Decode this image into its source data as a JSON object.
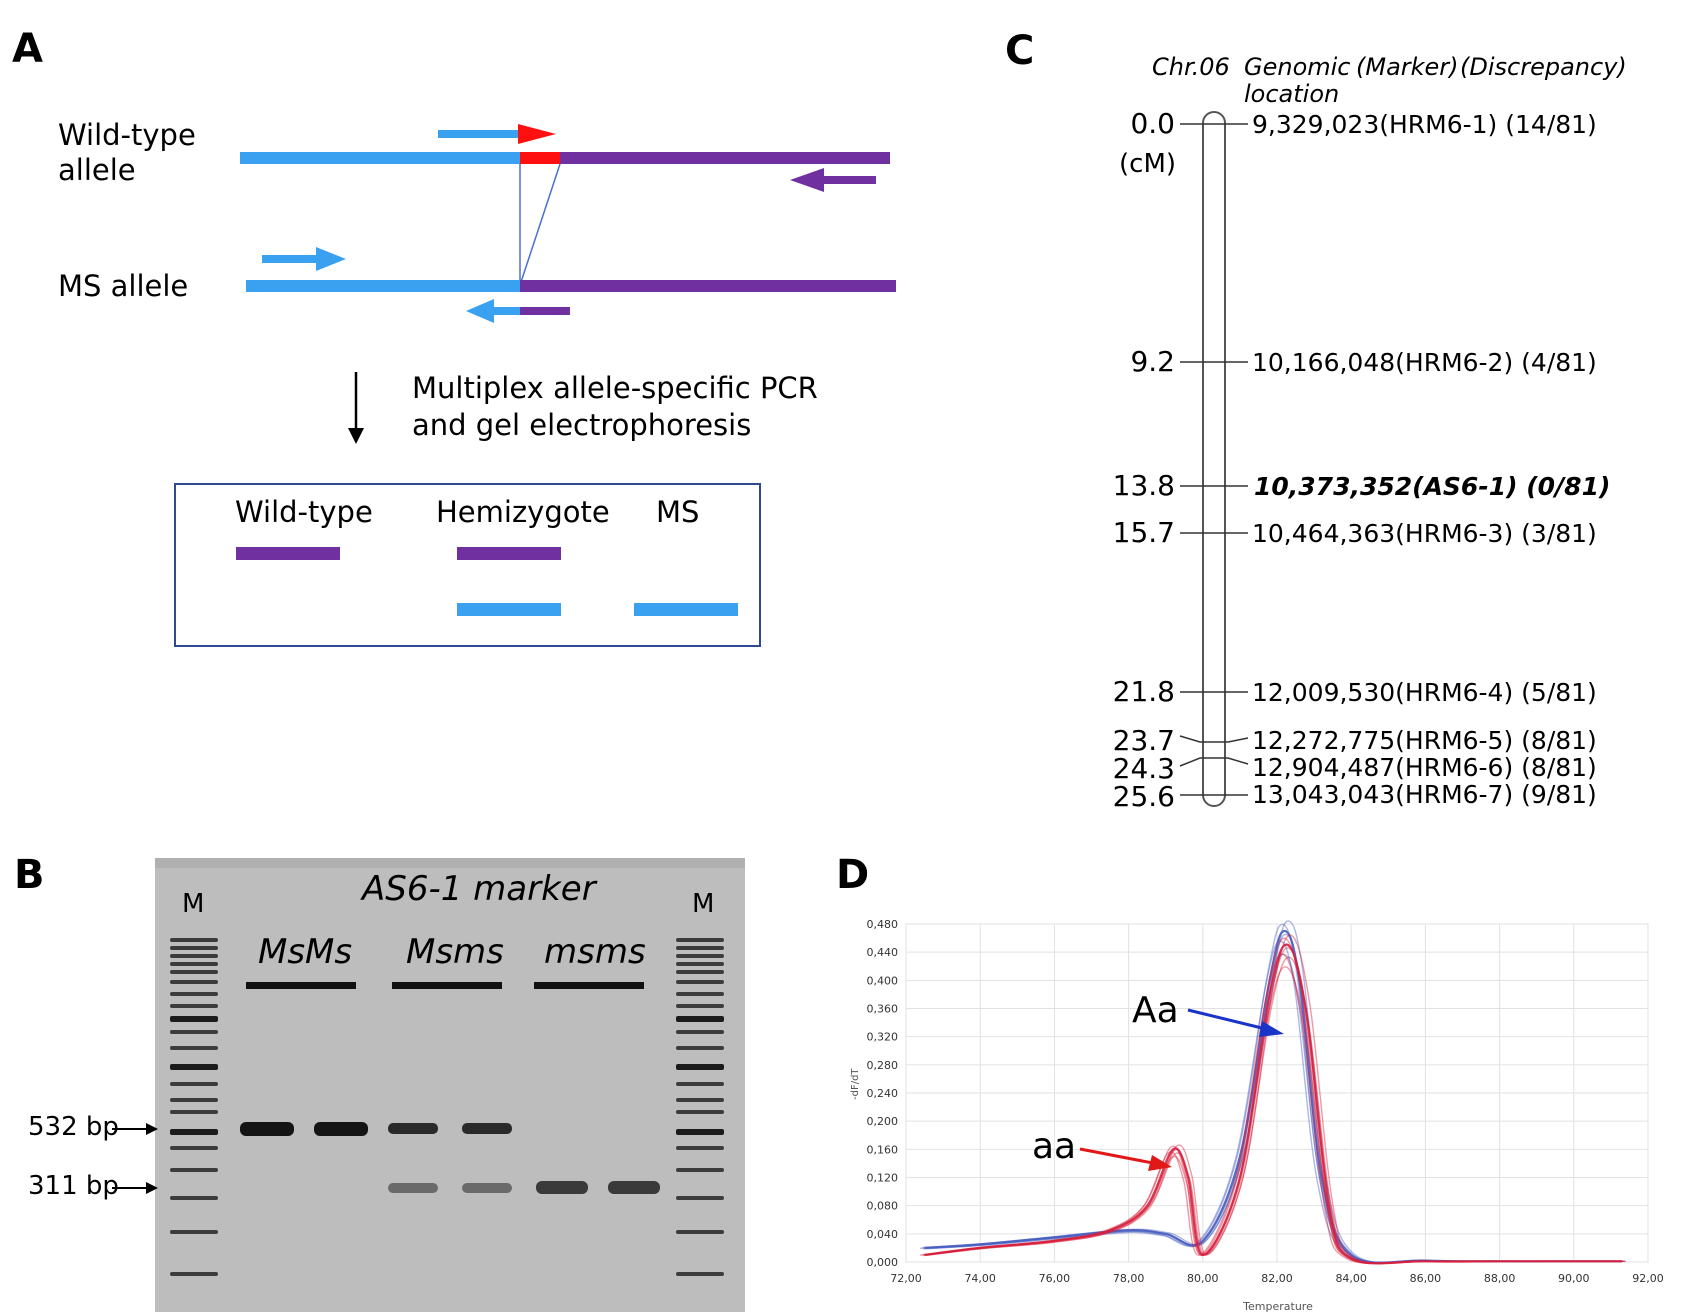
{
  "colors": {
    "blue": "#3aa0f0",
    "purple": "#7030a0",
    "red": "#ff1010",
    "navy": "#2f4a8f",
    "gel_bg": "#bdbdbd",
    "band": "#1a1a1a",
    "curve_blue": "#4a5fc0",
    "curve_red": "#d8203c"
  },
  "panel_a": {
    "label": "A",
    "wild_type_line1": "Wild-type",
    "wild_type_line2": "allele",
    "ms_allele": "MS allele",
    "process_line1": "Multiplex allele-specific PCR",
    "process_line2": "and gel electrophoresis",
    "lanes": [
      "Wild-type",
      "Hemizygote",
      "MS"
    ]
  },
  "panel_b": {
    "label": "B",
    "title": "AS6-1 marker",
    "marker_left": "M",
    "marker_right": "M",
    "groups": [
      "MsMs",
      "Msms",
      "msms"
    ],
    "size_labels": [
      "532 bp",
      "311 bp"
    ]
  },
  "panel_c": {
    "label": "C",
    "header_chr": "Chr.06",
    "header_genomic_line1": "Genomic",
    "header_genomic_line2": "location",
    "header_marker": "(Marker)",
    "header_discrepancy": "(Discrepancy)",
    "unit": "(cM)",
    "loci": [
      {
        "cm": "0.0",
        "text": "9,329,023(HRM6-1) (14/81)",
        "bold_italic": false
      },
      {
        "cm": "9.2",
        "text": "10,166,048(HRM6-2) (4/81)",
        "bold_italic": false
      },
      {
        "cm": "13.8",
        "text": "10,373,352(AS6-1) (0/81)",
        "bold_italic": true
      },
      {
        "cm": "15.7",
        "text": "10,464,363(HRM6-3) (3/81)",
        "bold_italic": false
      },
      {
        "cm": "21.8",
        "text": "12,009,530(HRM6-4) (5/81)",
        "bold_italic": false
      },
      {
        "cm": "23.7",
        "text": "12,272,775(HRM6-5) (8/81)",
        "bold_italic": false
      },
      {
        "cm": "24.3",
        "text": "12,904,487(HRM6-6) (8/81)",
        "bold_italic": false
      },
      {
        "cm": "25.6",
        "text": "13,043,043(HRM6-7) (9/81)",
        "bold_italic": false
      }
    ]
  },
  "panel_d": {
    "label": "D",
    "ylabel": "-dF/dT",
    "xlabel": "Temperature",
    "annotation_aa_upper": "Aa",
    "annotation_aa_lower": "aa"
  },
  "chart_data": {
    "type": "line",
    "title": "",
    "xlabel": "Temperature",
    "ylabel": "-dF/dT",
    "xlim": [
      72.0,
      92.0
    ],
    "ylim": [
      0.0,
      0.48
    ],
    "x_ticks": [
      "72,00",
      "74,00",
      "76,00",
      "78,00",
      "80,00",
      "82,00",
      "84,00",
      "86,00",
      "88,00",
      "90,00",
      "92,00"
    ],
    "y_ticks": [
      "0,000",
      "0,040",
      "0,080",
      "0,120",
      "0,160",
      "0,200",
      "0,240",
      "0,280",
      "0,320",
      "0,360",
      "0,400",
      "0,440",
      "0,480"
    ],
    "series": [
      {
        "name": "Aa",
        "x": [
          72.5,
          74,
          76,
          78,
          79,
          80,
          81,
          81.8,
          82.2,
          82.6,
          83.2,
          84,
          86,
          88,
          90,
          91.3
        ],
        "y": [
          0.02,
          0.025,
          0.035,
          0.045,
          0.04,
          0.03,
          0.15,
          0.4,
          0.47,
          0.4,
          0.12,
          0.01,
          0.002,
          0.001,
          0.001,
          0.001
        ]
      },
      {
        "name": "aa",
        "x": [
          72.5,
          74,
          76,
          77.5,
          78.5,
          79.2,
          79.6,
          80,
          81,
          81.8,
          82.3,
          82.8,
          83.4,
          84,
          86,
          88,
          90,
          91.3
        ],
        "y": [
          0.01,
          0.02,
          0.03,
          0.045,
          0.08,
          0.16,
          0.12,
          0.01,
          0.12,
          0.38,
          0.45,
          0.35,
          0.08,
          0.005,
          0.001,
          0.001,
          0.001,
          0.001
        ]
      }
    ]
  }
}
